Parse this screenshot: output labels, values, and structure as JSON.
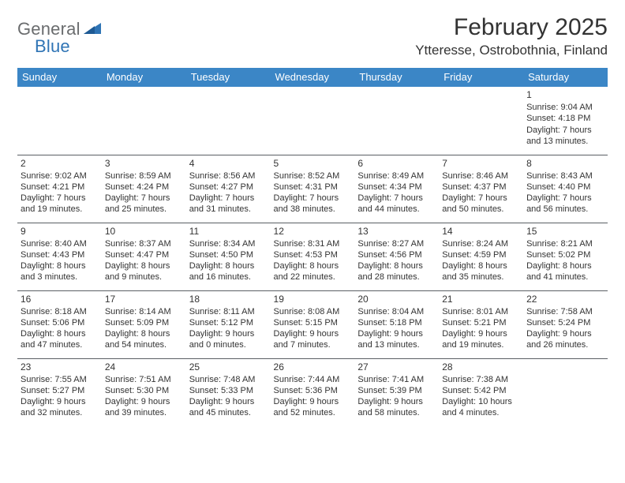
{
  "brand": {
    "part1": "General",
    "part2": "Blue"
  },
  "title": "February 2025",
  "location": "Ytteresse, Ostrobothnia, Finland",
  "theme": {
    "header_bg": "#3b86c6",
    "header_fg": "#ffffff",
    "border_color": "#5a5f64",
    "text_color": "#333333",
    "brand_gray": "#6a6c6e",
    "brand_blue": "#2f74b5",
    "background": "#ffffff",
    "title_fontsize": 30,
    "location_fontsize": 17,
    "dayhead_fontsize": 13,
    "cell_fontsize": 11
  },
  "day_headers": [
    "Sunday",
    "Monday",
    "Tuesday",
    "Wednesday",
    "Thursday",
    "Friday",
    "Saturday"
  ],
  "weeks": [
    [
      null,
      null,
      null,
      null,
      null,
      null,
      {
        "n": "1",
        "sr": "Sunrise: 9:04 AM",
        "ss": "Sunset: 4:18 PM",
        "d1": "Daylight: 7 hours",
        "d2": "and 13 minutes."
      }
    ],
    [
      {
        "n": "2",
        "sr": "Sunrise: 9:02 AM",
        "ss": "Sunset: 4:21 PM",
        "d1": "Daylight: 7 hours",
        "d2": "and 19 minutes."
      },
      {
        "n": "3",
        "sr": "Sunrise: 8:59 AM",
        "ss": "Sunset: 4:24 PM",
        "d1": "Daylight: 7 hours",
        "d2": "and 25 minutes."
      },
      {
        "n": "4",
        "sr": "Sunrise: 8:56 AM",
        "ss": "Sunset: 4:27 PM",
        "d1": "Daylight: 7 hours",
        "d2": "and 31 minutes."
      },
      {
        "n": "5",
        "sr": "Sunrise: 8:52 AM",
        "ss": "Sunset: 4:31 PM",
        "d1": "Daylight: 7 hours",
        "d2": "and 38 minutes."
      },
      {
        "n": "6",
        "sr": "Sunrise: 8:49 AM",
        "ss": "Sunset: 4:34 PM",
        "d1": "Daylight: 7 hours",
        "d2": "and 44 minutes."
      },
      {
        "n": "7",
        "sr": "Sunrise: 8:46 AM",
        "ss": "Sunset: 4:37 PM",
        "d1": "Daylight: 7 hours",
        "d2": "and 50 minutes."
      },
      {
        "n": "8",
        "sr": "Sunrise: 8:43 AM",
        "ss": "Sunset: 4:40 PM",
        "d1": "Daylight: 7 hours",
        "d2": "and 56 minutes."
      }
    ],
    [
      {
        "n": "9",
        "sr": "Sunrise: 8:40 AM",
        "ss": "Sunset: 4:43 PM",
        "d1": "Daylight: 8 hours",
        "d2": "and 3 minutes."
      },
      {
        "n": "10",
        "sr": "Sunrise: 8:37 AM",
        "ss": "Sunset: 4:47 PM",
        "d1": "Daylight: 8 hours",
        "d2": "and 9 minutes."
      },
      {
        "n": "11",
        "sr": "Sunrise: 8:34 AM",
        "ss": "Sunset: 4:50 PM",
        "d1": "Daylight: 8 hours",
        "d2": "and 16 minutes."
      },
      {
        "n": "12",
        "sr": "Sunrise: 8:31 AM",
        "ss": "Sunset: 4:53 PM",
        "d1": "Daylight: 8 hours",
        "d2": "and 22 minutes."
      },
      {
        "n": "13",
        "sr": "Sunrise: 8:27 AM",
        "ss": "Sunset: 4:56 PM",
        "d1": "Daylight: 8 hours",
        "d2": "and 28 minutes."
      },
      {
        "n": "14",
        "sr": "Sunrise: 8:24 AM",
        "ss": "Sunset: 4:59 PM",
        "d1": "Daylight: 8 hours",
        "d2": "and 35 minutes."
      },
      {
        "n": "15",
        "sr": "Sunrise: 8:21 AM",
        "ss": "Sunset: 5:02 PM",
        "d1": "Daylight: 8 hours",
        "d2": "and 41 minutes."
      }
    ],
    [
      {
        "n": "16",
        "sr": "Sunrise: 8:18 AM",
        "ss": "Sunset: 5:06 PM",
        "d1": "Daylight: 8 hours",
        "d2": "and 47 minutes."
      },
      {
        "n": "17",
        "sr": "Sunrise: 8:14 AM",
        "ss": "Sunset: 5:09 PM",
        "d1": "Daylight: 8 hours",
        "d2": "and 54 minutes."
      },
      {
        "n": "18",
        "sr": "Sunrise: 8:11 AM",
        "ss": "Sunset: 5:12 PM",
        "d1": "Daylight: 9 hours",
        "d2": "and 0 minutes."
      },
      {
        "n": "19",
        "sr": "Sunrise: 8:08 AM",
        "ss": "Sunset: 5:15 PM",
        "d1": "Daylight: 9 hours",
        "d2": "and 7 minutes."
      },
      {
        "n": "20",
        "sr": "Sunrise: 8:04 AM",
        "ss": "Sunset: 5:18 PM",
        "d1": "Daylight: 9 hours",
        "d2": "and 13 minutes."
      },
      {
        "n": "21",
        "sr": "Sunrise: 8:01 AM",
        "ss": "Sunset: 5:21 PM",
        "d1": "Daylight: 9 hours",
        "d2": "and 19 minutes."
      },
      {
        "n": "22",
        "sr": "Sunrise: 7:58 AM",
        "ss": "Sunset: 5:24 PM",
        "d1": "Daylight: 9 hours",
        "d2": "and 26 minutes."
      }
    ],
    [
      {
        "n": "23",
        "sr": "Sunrise: 7:55 AM",
        "ss": "Sunset: 5:27 PM",
        "d1": "Daylight: 9 hours",
        "d2": "and 32 minutes."
      },
      {
        "n": "24",
        "sr": "Sunrise: 7:51 AM",
        "ss": "Sunset: 5:30 PM",
        "d1": "Daylight: 9 hours",
        "d2": "and 39 minutes."
      },
      {
        "n": "25",
        "sr": "Sunrise: 7:48 AM",
        "ss": "Sunset: 5:33 PM",
        "d1": "Daylight: 9 hours",
        "d2": "and 45 minutes."
      },
      {
        "n": "26",
        "sr": "Sunrise: 7:44 AM",
        "ss": "Sunset: 5:36 PM",
        "d1": "Daylight: 9 hours",
        "d2": "and 52 minutes."
      },
      {
        "n": "27",
        "sr": "Sunrise: 7:41 AM",
        "ss": "Sunset: 5:39 PM",
        "d1": "Daylight: 9 hours",
        "d2": "and 58 minutes."
      },
      {
        "n": "28",
        "sr": "Sunrise: 7:38 AM",
        "ss": "Sunset: 5:42 PM",
        "d1": "Daylight: 10 hours",
        "d2": "and 4 minutes."
      },
      null
    ]
  ]
}
